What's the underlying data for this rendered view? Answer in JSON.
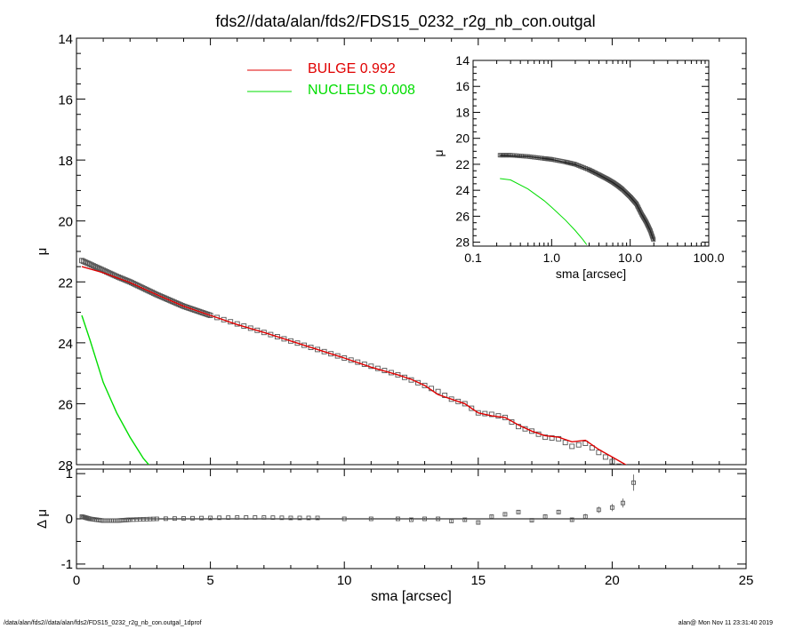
{
  "title": "fds2//data/alan/fds2/FDS15_0232_r2g_nb_con.outgal",
  "footer": {
    "left": "/data/alan/fds2//data/alan/fds2/FDS15_0232_r2g_nb_con.outgal_1dprof",
    "right": "alan@  Mon Nov 11 23:31:40 2019"
  },
  "colors": {
    "bulge": "#e00000",
    "nucleus": "#00dd00",
    "data": "#555555",
    "axes": "#000000"
  },
  "chart_data": [
    {
      "id": "main",
      "type": "scatter",
      "ylabel": "μ",
      "xlim": [
        0,
        25
      ],
      "ylim": [
        28,
        14
      ],
      "xticks": [
        0,
        5,
        10,
        15,
        20,
        25
      ],
      "yticks": [
        14,
        16,
        18,
        20,
        22,
        24,
        26,
        28
      ],
      "legend": [
        {
          "name": "BULGE  0.992",
          "color": "#e00000"
        },
        {
          "name": "NUCLEUS  0.008",
          "color": "#00dd00"
        }
      ],
      "legend_position": "top-center",
      "data_points": {
        "x": [
          0.2,
          0.5,
          1,
          1.5,
          2,
          3,
          4,
          5,
          6,
          7,
          8,
          9,
          10,
          11,
          12,
          12.5,
          13,
          13.5,
          14,
          14.5,
          15,
          15.5,
          16,
          16.5,
          17,
          17.5,
          18,
          18.5,
          19,
          19.5,
          20,
          20.5
        ],
        "y": [
          21.3,
          21.42,
          21.62,
          21.82,
          22.0,
          22.42,
          22.8,
          23.1,
          23.38,
          23.66,
          23.94,
          24.22,
          24.5,
          24.77,
          25.05,
          25.22,
          25.4,
          25.6,
          25.85,
          26.0,
          26.3,
          26.35,
          26.45,
          26.75,
          26.9,
          27.1,
          27.15,
          27.4,
          27.3,
          27.6,
          27.9,
          28.2
        ]
      },
      "series": [
        {
          "name": "BULGE  0.992",
          "x": [
            0.2,
            1,
            2,
            3,
            4,
            5,
            6,
            7,
            8,
            9,
            10,
            11,
            12,
            12.5,
            13,
            13.5,
            14,
            14.5,
            15,
            15.5,
            16,
            16.5,
            17,
            17.5,
            18,
            18.5,
            19,
            19.5,
            20,
            20.8
          ],
          "y": [
            21.5,
            21.7,
            22.02,
            22.42,
            22.8,
            23.1,
            23.4,
            23.66,
            23.94,
            24.22,
            24.5,
            24.8,
            25.05,
            25.2,
            25.4,
            25.7,
            25.85,
            26.0,
            26.3,
            26.4,
            26.45,
            26.7,
            26.9,
            27.05,
            27.1,
            27.25,
            27.2,
            27.5,
            27.75,
            28.15
          ]
        },
        {
          "name": "NUCLEUS  0.008",
          "x": [
            0.2,
            0.5,
            1,
            1.5,
            2,
            2.5,
            2.8
          ],
          "y": [
            23.1,
            23.9,
            25.3,
            26.3,
            27.1,
            27.8,
            28.1
          ]
        }
      ]
    },
    {
      "id": "inset",
      "type": "scatter",
      "xlabel": "sma [arcsec]",
      "ylabel": "μ",
      "xscale": "log",
      "xlim": [
        0.1,
        100
      ],
      "ylim": [
        28.3,
        14
      ],
      "xticks": [
        0.1,
        1,
        10,
        100
      ],
      "xticklabels": [
        "0.1",
        "1.0",
        "10.0",
        "100.0"
      ],
      "yticks": [
        14,
        16,
        18,
        20,
        22,
        24,
        26,
        28
      ],
      "data_points": {
        "x": [
          0.22,
          0.3,
          0.5,
          0.8,
          1,
          1.5,
          2,
          3,
          4,
          5,
          6,
          7,
          8,
          10,
          12,
          14,
          16,
          18,
          20
        ],
        "y": [
          21.3,
          21.3,
          21.4,
          21.55,
          21.62,
          21.82,
          22.0,
          22.42,
          22.8,
          23.1,
          23.38,
          23.66,
          23.94,
          24.5,
          25.05,
          25.85,
          26.45,
          27.1,
          27.9
        ]
      },
      "series": [
        {
          "name": "bulge",
          "x": [
            0.22,
            0.5,
            1,
            2,
            3,
            4,
            6,
            8,
            10,
            12,
            14,
            16,
            18,
            20
          ],
          "y": [
            21.32,
            21.4,
            21.62,
            22.02,
            22.42,
            22.8,
            23.4,
            23.94,
            24.5,
            25.05,
            25.85,
            26.45,
            27.1,
            27.9
          ]
        },
        {
          "name": "nucleus",
          "x": [
            0.22,
            0.3,
            0.5,
            0.8,
            1,
            1.5,
            2,
            2.5,
            2.8
          ],
          "y": [
            23.1,
            23.2,
            23.9,
            24.8,
            25.3,
            26.3,
            27.1,
            27.8,
            28.2
          ]
        }
      ]
    },
    {
      "id": "residual",
      "type": "scatter",
      "xlabel": "sma [arcsec]",
      "ylabel": "Δ μ",
      "xlim": [
        0,
        25
      ],
      "ylim": [
        -1.1,
        1.1
      ],
      "xticks": [
        0,
        5,
        10,
        15,
        20,
        25
      ],
      "yticks": [
        -1,
        0,
        1
      ],
      "zero_line": true,
      "points": {
        "x": [
          0.2,
          0.5,
          1,
          1.5,
          2,
          3,
          4,
          5,
          6,
          7,
          8,
          9,
          10,
          11,
          12,
          12.5,
          13,
          13.5,
          14,
          14.5,
          15,
          15.5,
          16,
          16.5,
          17,
          17.5,
          18,
          18.5,
          19,
          19.5,
          20,
          20.4,
          20.8
        ],
        "y": [
          0.05,
          0.0,
          -0.04,
          -0.04,
          -0.02,
          0.0,
          0.01,
          0.02,
          0.03,
          0.03,
          0.02,
          0.02,
          0.0,
          0.0,
          0.0,
          -0.02,
          0.0,
          0.0,
          -0.05,
          -0.02,
          -0.08,
          0.05,
          0.1,
          0.15,
          -0.03,
          0.05,
          0.15,
          -0.02,
          0.05,
          0.2,
          0.25,
          0.35,
          0.8
        ],
        "err": [
          0.01,
          0.01,
          0.01,
          0.01,
          0.01,
          0.01,
          0.01,
          0.01,
          0.01,
          0.01,
          0.01,
          0.01,
          0.01,
          0.02,
          0.02,
          0.02,
          0.02,
          0.02,
          0.03,
          0.03,
          0.03,
          0.03,
          0.04,
          0.04,
          0.04,
          0.05,
          0.05,
          0.05,
          0.06,
          0.07,
          0.08,
          0.1,
          0.18
        ]
      }
    }
  ]
}
